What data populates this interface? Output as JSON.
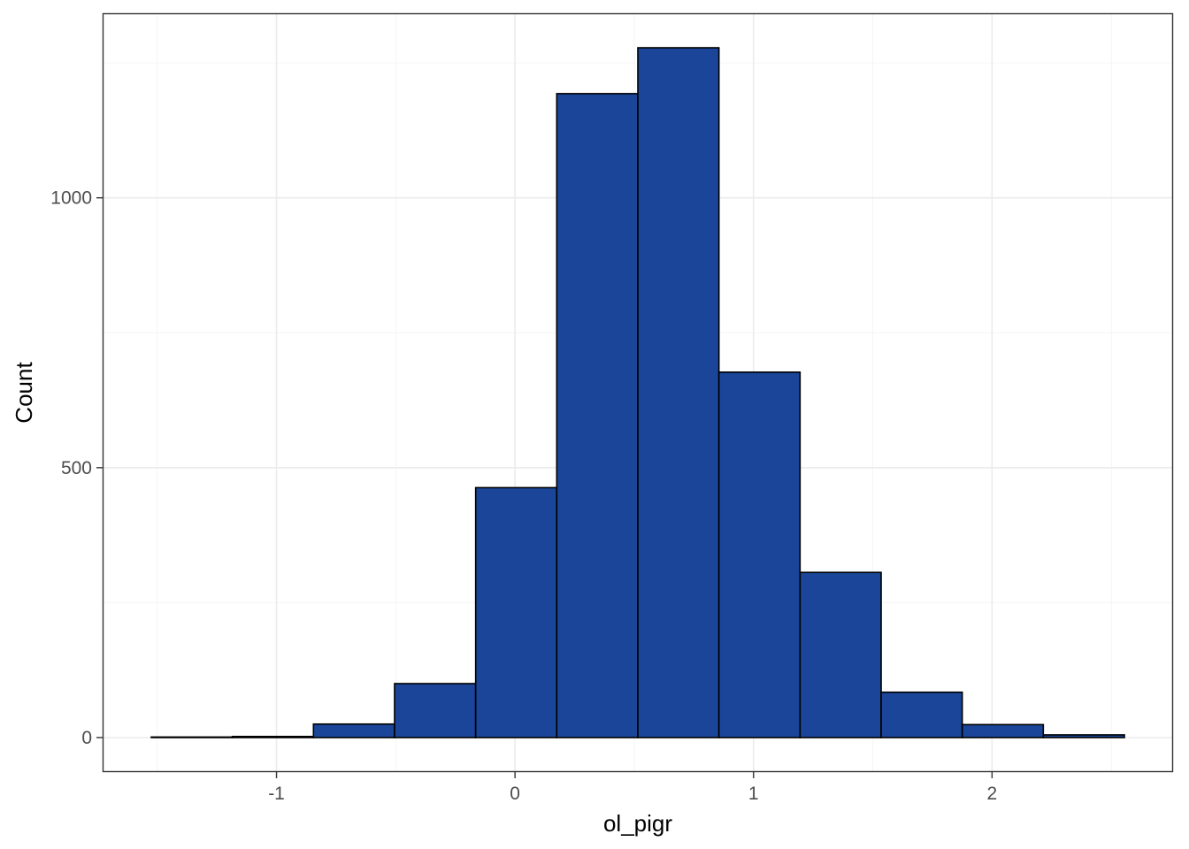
{
  "chart_data": {
    "type": "bar",
    "subtype": "histogram",
    "xlabel": "ol_pigr",
    "ylabel": "Count",
    "bins": [
      {
        "x0": -1.525,
        "x1": -1.185,
        "count": 1
      },
      {
        "x0": -1.185,
        "x1": -0.845,
        "count": 2
      },
      {
        "x0": -0.845,
        "x1": -0.505,
        "count": 25
      },
      {
        "x0": -0.505,
        "x1": -0.165,
        "count": 100
      },
      {
        "x0": -0.165,
        "x1": 0.175,
        "count": 463
      },
      {
        "x0": 0.175,
        "x1": 0.515,
        "count": 1193
      },
      {
        "x0": 0.515,
        "x1": 0.855,
        "count": 1278
      },
      {
        "x0": 0.855,
        "x1": 1.195,
        "count": 677
      },
      {
        "x0": 1.195,
        "x1": 1.535,
        "count": 306
      },
      {
        "x0": 1.535,
        "x1": 1.875,
        "count": 84
      },
      {
        "x0": 1.875,
        "x1": 2.215,
        "count": 24
      },
      {
        "x0": 2.215,
        "x1": 2.555,
        "count": 5
      }
    ],
    "xlim": [
      -1.729,
      2.759
    ],
    "ylim": [
      -63.9,
      1341.9
    ],
    "x_ticks": [
      -1,
      0,
      1,
      2
    ],
    "x_tick_labels": [
      "-1",
      "0",
      "1",
      "2"
    ],
    "x_minor_ticks": [
      -1.5,
      -0.5,
      0.5,
      1.5,
      2.5
    ],
    "y_ticks": [
      0,
      500,
      1000
    ],
    "y_tick_labels": [
      "0",
      "500",
      "1000"
    ],
    "y_minor_ticks": [
      250,
      750,
      1250
    ],
    "grid": true,
    "legend": "none",
    "colors": {
      "bar_fill": "#1A4599",
      "bar_stroke": "#000000",
      "panel_border": "#333333",
      "grid_major": "#EBEBEB",
      "grid_minor": "#F5F5F5",
      "background": "#FFFFFF"
    }
  }
}
